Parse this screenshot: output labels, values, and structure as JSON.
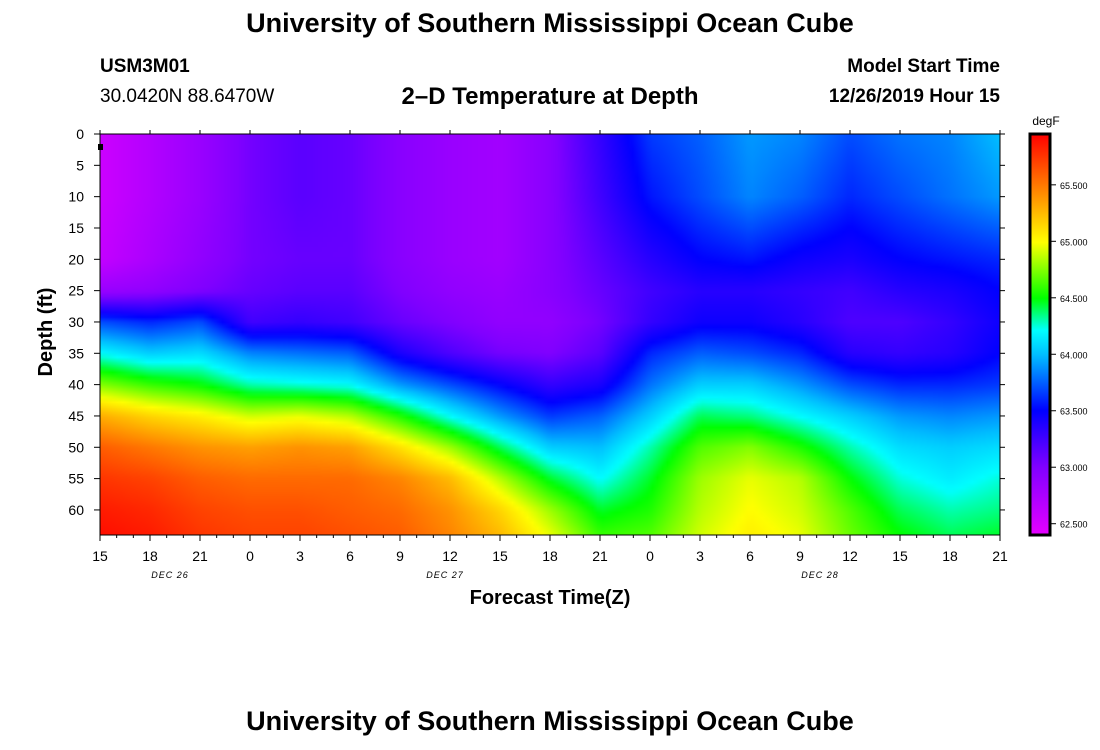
{
  "header": {
    "top_title": "University of Southern Mississippi Ocean Cube",
    "station_id": "USM3M01",
    "coordinates": "30.0420N 88.6470W",
    "chart_title": "2–D Temperature at Depth",
    "model_start_label": "Model Start Time",
    "model_start_value": "12/26/2019 Hour 15",
    "bottom_title": "University of Southern Mississippi Ocean Cube"
  },
  "chart_data": {
    "type": "heatmap",
    "title": "2–D Temperature at Depth",
    "xlabel": "Forecast Time(Z)",
    "ylabel": "Depth (ft)",
    "units": "degF",
    "x_hours": [
      0,
      3,
      6,
      9,
      12,
      15,
      18,
      21,
      24,
      27,
      30,
      33,
      36,
      39,
      42,
      45,
      48,
      51,
      54
    ],
    "x_tick_labels": [
      "15",
      "18",
      "21",
      "0",
      "3",
      "6",
      "9",
      "12",
      "15",
      "18",
      "21",
      "0",
      "3",
      "6",
      "9",
      "12",
      "15",
      "18",
      "21"
    ],
    "date_labels": [
      {
        "hour": 4.2,
        "text": "DEC 26"
      },
      {
        "hour": 20.7,
        "text": "DEC 27"
      },
      {
        "hour": 43.2,
        "text": "DEC 28"
      }
    ],
    "depth_ticks": [
      0,
      5,
      10,
      15,
      20,
      25,
      30,
      35,
      40,
      45,
      50,
      55,
      60
    ],
    "depth_range": [
      0,
      64
    ],
    "colorbar_ticks": [
      "62.500",
      "63.000",
      "63.500",
      "64.000",
      "64.500",
      "65.000",
      "65.500"
    ],
    "colorbar_range": [
      62.4,
      65.95
    ],
    "depths_ft": [
      0,
      10,
      20,
      25,
      30,
      35,
      40,
      45,
      50,
      55,
      60,
      64
    ],
    "temperatures_degF": [
      [
        62.55,
        62.55,
        62.6,
        62.85,
        63.7,
        64.2,
        64.75,
        65.3,
        65.6,
        65.75,
        65.85,
        65.9
      ],
      [
        62.7,
        62.7,
        62.75,
        62.9,
        63.6,
        64.05,
        64.6,
        65.15,
        65.5,
        65.7,
        65.8,
        65.85
      ],
      [
        62.85,
        62.85,
        62.9,
        63.0,
        63.7,
        64.1,
        64.5,
        65.05,
        65.4,
        65.6,
        65.7,
        65.75
      ],
      [
        63.05,
        63.05,
        63.05,
        63.1,
        63.25,
        63.85,
        64.3,
        64.9,
        65.35,
        65.55,
        65.65,
        65.7
      ],
      [
        63.15,
        63.15,
        63.1,
        63.15,
        63.3,
        63.8,
        64.25,
        64.95,
        65.4,
        65.55,
        65.65,
        65.7
      ],
      [
        63.1,
        63.1,
        63.1,
        63.15,
        63.25,
        63.75,
        64.2,
        64.85,
        65.35,
        65.55,
        65.6,
        65.65
      ],
      [
        62.95,
        62.95,
        62.95,
        63.0,
        63.1,
        63.4,
        63.9,
        64.55,
        65.1,
        65.45,
        65.55,
        65.6
      ],
      [
        62.85,
        62.85,
        62.85,
        62.9,
        63.0,
        63.2,
        63.7,
        64.2,
        64.8,
        65.25,
        65.4,
        65.45
      ],
      [
        62.8,
        62.8,
        62.8,
        62.85,
        62.9,
        63.05,
        63.5,
        63.9,
        64.4,
        64.85,
        65.15,
        65.25
      ],
      [
        62.95,
        62.95,
        62.95,
        62.95,
        62.9,
        63.0,
        63.3,
        63.65,
        64.05,
        64.45,
        64.8,
        64.95
      ],
      [
        63.3,
        63.25,
        63.15,
        63.1,
        63.05,
        63.15,
        63.4,
        63.75,
        64.0,
        64.2,
        64.45,
        64.6
      ],
      [
        63.65,
        63.55,
        63.35,
        63.25,
        63.3,
        63.6,
        63.8,
        64.05,
        64.3,
        64.45,
        64.55,
        64.65
      ],
      [
        63.75,
        63.7,
        63.5,
        63.35,
        63.45,
        63.75,
        64.05,
        64.4,
        64.65,
        64.8,
        64.85,
        64.9
      ],
      [
        63.9,
        63.85,
        63.55,
        63.35,
        63.45,
        63.7,
        64.05,
        64.35,
        64.75,
        64.95,
        65.0,
        65.05
      ],
      [
        63.85,
        63.75,
        63.45,
        63.3,
        63.35,
        63.6,
        63.9,
        64.2,
        64.55,
        64.85,
        64.9,
        64.95
      ],
      [
        63.7,
        63.6,
        63.4,
        63.25,
        63.2,
        63.35,
        63.7,
        64.05,
        64.3,
        64.5,
        64.65,
        64.7
      ],
      [
        63.8,
        63.7,
        63.5,
        63.35,
        63.2,
        63.3,
        63.6,
        63.9,
        64.1,
        64.25,
        64.4,
        64.5
      ],
      [
        63.85,
        63.8,
        63.55,
        63.4,
        63.3,
        63.35,
        63.6,
        63.85,
        64.05,
        64.15,
        64.3,
        64.4
      ],
      [
        64.0,
        63.9,
        63.6,
        63.5,
        63.45,
        63.5,
        63.65,
        63.9,
        64.1,
        64.25,
        64.35,
        64.45
      ]
    ]
  },
  "colors": {
    "frame": "#000000",
    "background": "#ffffff",
    "marker": "#000000"
  }
}
